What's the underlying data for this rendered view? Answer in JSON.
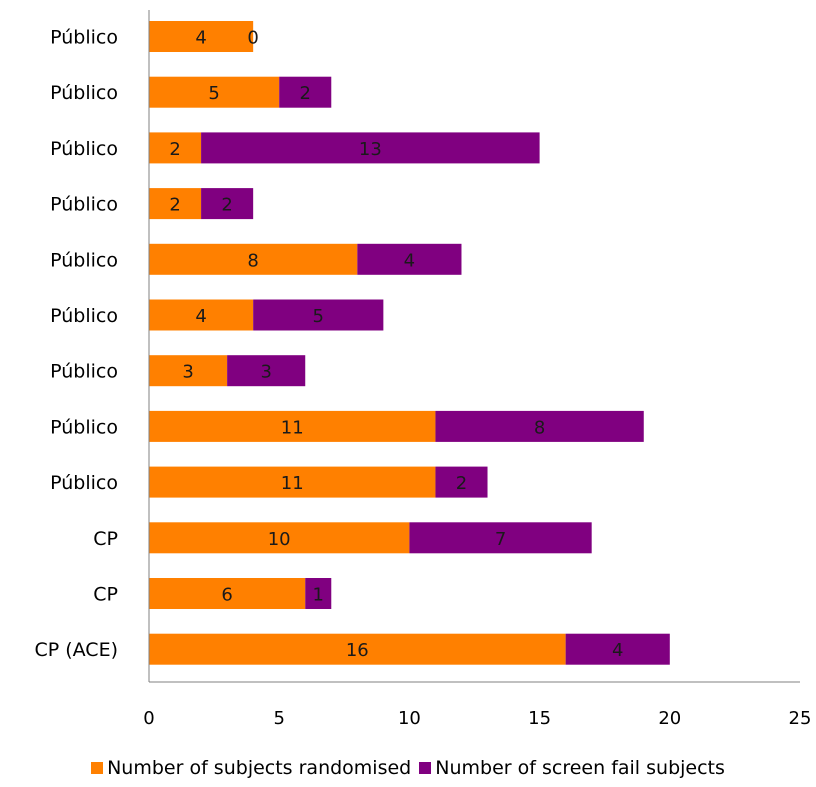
{
  "chart_data": {
    "type": "bar",
    "orientation": "horizontal",
    "stacked": true,
    "categories": [
      "Público",
      "Público",
      "Público",
      "Público",
      "Público",
      "Público",
      "Público",
      "Público",
      "Público",
      "CP",
      "CP",
      "CP  (ACE)"
    ],
    "series": [
      {
        "name": "Number of subjects randomised",
        "color": "#FF8000",
        "values": [
          4,
          5,
          2,
          2,
          8,
          4,
          3,
          11,
          11,
          10,
          6,
          16
        ]
      },
      {
        "name": "Number of screen fail subjects",
        "color": "#800080",
        "values": [
          0,
          2,
          13,
          2,
          4,
          5,
          3,
          8,
          2,
          7,
          1,
          4
        ]
      }
    ],
    "xlim": [
      0,
      25
    ],
    "xticks": [
      "0",
      "5",
      "10",
      "15",
      "20",
      "25"
    ],
    "data_labels": true,
    "grid": false,
    "legend_position": "bottom"
  }
}
